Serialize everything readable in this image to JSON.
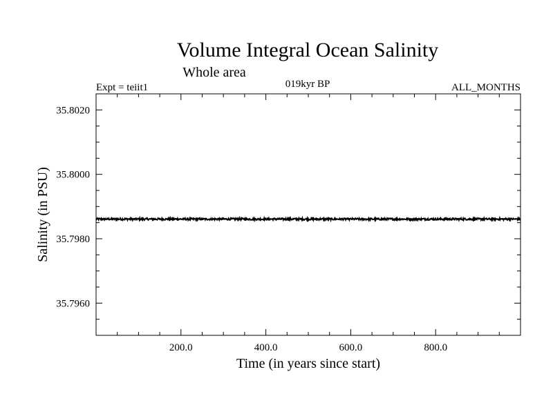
{
  "chart_data": {
    "type": "line",
    "title": "Volume Integral Ocean Salinity",
    "subtitle": "Whole area",
    "annotations": {
      "left": "Expt = teiit1",
      "center": "019kyr BP",
      "right": "ALL_MONTHS"
    },
    "xlabel": "Time (in years since start)",
    "ylabel": "Salinity (in PSU)",
    "xlim": [
      0,
      1000
    ],
    "ylim": [
      35.795,
      35.8025
    ],
    "xticks": [
      200,
      400,
      600,
      800
    ],
    "xtick_labels": [
      "200.0",
      "400.0",
      "600.0",
      "800.0"
    ],
    "yticks": [
      35.796,
      35.798,
      35.8,
      35.802
    ],
    "ytick_labels": [
      "35.7960",
      "35.7980",
      "35.8000",
      "35.8020"
    ],
    "grid": false,
    "series": [
      {
        "mean": 35.79861,
        "noise_amplitude": 3e-05,
        "x_range": [
          0,
          1000
        ],
        "color": "#000000"
      }
    ]
  }
}
